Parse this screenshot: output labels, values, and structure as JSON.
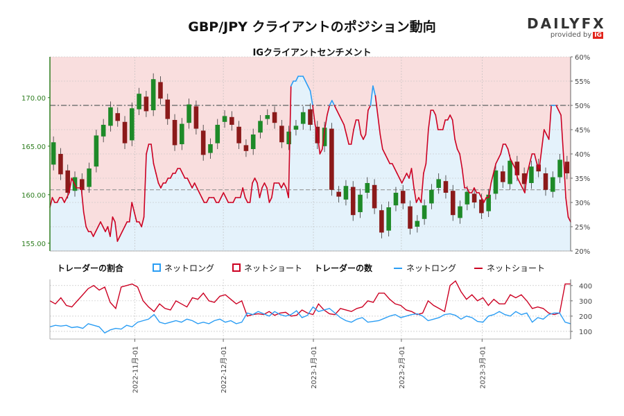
{
  "header": {
    "title": "GBP/JPY クライアントのポジション動向",
    "subtitle": "IGクライアントセンチメント",
    "brand": "DAILYFX",
    "brand_sub": "provided by",
    "brand_ig": "IG"
  },
  "legend": {
    "ratio_title": "トレーダーの割合",
    "long_label": "ネットロング",
    "short_label": "ネットショート",
    "count_title": "トレーダーの数",
    "count_long_label": "ネットロング",
    "count_short_label": "ネットショート"
  },
  "colors": {
    "long": "#2a9df4",
    "short": "#cc0022",
    "candle_up": "#1e8a28",
    "candle_down": "#8b1a1a",
    "short_fill": "#f9dede",
    "long_fill": "#e4f2fb",
    "left_axis": "#2d7d1f"
  },
  "chart_data": [
    {
      "type": "line",
      "title": "IGクライアントセンチメント",
      "y_left_ticks": [
        "155.00",
        "160.00",
        "165.00",
        "170.00"
      ],
      "y_left_range": [
        154.2,
        174.2
      ],
      "y_right_ticks": [
        "20%",
        "25%",
        "30%",
        "35%",
        "40%",
        "45%",
        "50%",
        "55%",
        "60%"
      ],
      "y_right_range": [
        20,
        60
      ],
      "reference_lines": {
        "long_pct": 50,
        "price": 160.5
      },
      "x_ticks": [
        "2022-11月-01",
        "2022-12月-01",
        "2023-1月-01",
        "2023-2月-01",
        "2023-3月-01"
      ],
      "series": [
        {
          "name": "ネットショート",
          "values": [
            29,
            31,
            30,
            30,
            31,
            31,
            30,
            31,
            32,
            35,
            34,
            33,
            33,
            33,
            28,
            25,
            24,
            24,
            23,
            24,
            25,
            26,
            25,
            24,
            25,
            23,
            27,
            26,
            22,
            23,
            24,
            25,
            26,
            26,
            30,
            28,
            26,
            26,
            25,
            27,
            40,
            42,
            42,
            38,
            36,
            34,
            33,
            34,
            34,
            35,
            35,
            36,
            36,
            37,
            37,
            36,
            35,
            35,
            34,
            33,
            34,
            33,
            32,
            31,
            30,
            30,
            31,
            31,
            31,
            30,
            30,
            31,
            32,
            31,
            30,
            30,
            30,
            31,
            31,
            31,
            33,
            31,
            30,
            30,
            34,
            35,
            34,
            31,
            33,
            34,
            33,
            30,
            31,
            34,
            34,
            34,
            33,
            34,
            33,
            31,
            54,
            55,
            55,
            56,
            56,
            56,
            55,
            54,
            53,
            50,
            46,
            44,
            40,
            41,
            45,
            48,
            50,
            51,
            50,
            49,
            48,
            47,
            46,
            44,
            42,
            42,
            45,
            47,
            47,
            44,
            43,
            44,
            49,
            50,
            54,
            52,
            48,
            44,
            41,
            40,
            39,
            38,
            38,
            37,
            36,
            35,
            34,
            35,
            36,
            35,
            37,
            33,
            30,
            31,
            30,
            36,
            38,
            45,
            49,
            49,
            48,
            45,
            45,
            45,
            47,
            47,
            48,
            47,
            43,
            41,
            40,
            37,
            33,
            33,
            32,
            32,
            33,
            32,
            32,
            31,
            30,
            31,
            31,
            34,
            36,
            38,
            39,
            40,
            42,
            42,
            41,
            39,
            38,
            37,
            35,
            34,
            33,
            32,
            36,
            38,
            40,
            40,
            38,
            37,
            41,
            45,
            44,
            43,
            50,
            50,
            50,
            49,
            48,
            40,
            31,
            27,
            26
          ],
          "long_values": [
            71,
            69,
            70,
            70,
            69,
            69,
            70,
            69,
            68,
            65,
            66,
            67,
            67,
            67,
            72,
            75,
            76,
            76,
            77,
            76,
            75,
            74,
            75,
            76,
            75,
            77,
            73,
            74,
            78,
            77,
            76,
            75,
            74,
            74,
            70,
            72,
            74,
            74,
            75,
            73,
            60,
            58,
            58,
            62,
            64,
            66,
            67,
            66,
            66,
            65,
            65,
            64,
            64,
            63,
            63,
            64,
            65,
            65,
            66,
            67,
            66,
            67,
            68,
            69,
            70,
            70,
            69,
            69,
            69,
            70,
            70,
            69,
            68,
            69,
            70,
            70,
            70,
            69,
            69,
            69,
            67,
            69,
            70,
            70,
            66,
            65,
            66,
            69,
            67,
            66,
            67,
            70,
            69,
            66,
            66,
            66,
            67,
            66,
            67,
            69,
            46,
            45,
            45,
            44,
            44,
            44,
            45,
            46,
            47,
            50,
            54,
            56,
            60,
            59,
            55,
            52,
            50,
            49,
            50,
            51,
            52,
            53,
            54,
            56,
            58,
            58,
            55,
            53,
            53,
            56,
            57,
            56,
            51,
            50,
            46,
            48,
            52,
            56,
            59,
            60,
            61,
            62,
            62,
            63,
            64,
            65,
            66,
            65,
            64,
            65,
            63,
            67,
            70,
            69,
            70,
            64,
            62,
            55,
            51,
            51,
            52,
            55,
            55,
            55,
            53,
            53,
            52,
            53,
            57,
            59,
            60,
            63,
            67,
            67,
            68,
            68,
            67,
            68,
            68,
            69,
            70,
            69,
            69,
            66,
            64,
            62,
            61,
            60,
            58,
            58,
            59,
            61,
            62,
            63,
            65,
            66,
            67,
            68,
            64,
            62,
            60,
            60,
            62,
            63,
            59,
            55,
            56,
            57,
            50,
            50,
            50,
            51,
            52,
            60,
            69,
            73,
            74
          ]
        }
      ],
      "candles": [
        [
          163.1,
          165.4
        ],
        [
          164.2,
          162.1
        ],
        [
          162.5,
          160.2
        ],
        [
          160.4,
          161.8
        ],
        [
          161.6,
          160.5
        ],
        [
          160.8,
          162.7
        ],
        [
          162.9,
          166.1
        ],
        [
          166.0,
          167.2
        ],
        [
          167.1,
          169.0
        ],
        [
          168.4,
          167.6
        ],
        [
          167.5,
          165.3
        ],
        [
          165.6,
          168.9
        ],
        [
          168.8,
          170.4
        ],
        [
          170.1,
          168.6
        ],
        [
          168.7,
          171.9
        ],
        [
          171.6,
          169.9
        ],
        [
          169.8,
          167.8
        ],
        [
          167.7,
          165.1
        ],
        [
          165.2,
          167.3
        ],
        [
          167.4,
          169.3
        ],
        [
          169.1,
          166.8
        ],
        [
          166.6,
          164.1
        ],
        [
          164.3,
          165.2
        ],
        [
          165.3,
          167.2
        ],
        [
          167.5,
          168.1
        ],
        [
          168.0,
          167.2
        ],
        [
          167.0,
          165.3
        ],
        [
          165.1,
          164.5
        ],
        [
          164.7,
          166.2
        ],
        [
          166.4,
          167.6
        ],
        [
          167.8,
          168.2
        ],
        [
          168.5,
          167.4
        ],
        [
          167.1,
          165.4
        ],
        [
          165.2,
          166.5
        ],
        [
          166.7,
          167.1
        ],
        [
          167.3,
          168.5
        ],
        [
          168.8,
          167.2
        ],
        [
          167.0,
          165.3
        ],
        [
          165.0,
          166.9
        ],
        [
          166.8,
          160.5
        ],
        [
          160.3,
          159.8
        ],
        [
          159.5,
          160.9
        ],
        [
          160.8,
          157.9
        ],
        [
          158.2,
          160.0
        ],
        [
          160.2,
          161.2
        ],
        [
          161.0,
          158.6
        ],
        [
          158.4,
          156.1
        ],
        [
          156.3,
          158.7
        ],
        [
          158.9,
          160.2
        ],
        [
          160.4,
          159.1
        ],
        [
          158.8,
          156.5
        ],
        [
          156.7,
          157.3
        ],
        [
          157.5,
          158.9
        ],
        [
          159.1,
          160.5
        ],
        [
          160.7,
          161.6
        ],
        [
          161.4,
          160.2
        ],
        [
          160.4,
          157.9
        ],
        [
          157.6,
          158.8
        ],
        [
          159.0,
          160.3
        ],
        [
          160.1,
          159.2
        ],
        [
          159.5,
          158.1
        ],
        [
          158.3,
          160.0
        ],
        [
          160.1,
          162.5
        ],
        [
          162.4,
          161.3
        ],
        [
          161.1,
          163.5
        ],
        [
          163.4,
          162.0
        ],
        [
          162.2,
          161.1
        ],
        [
          161.2,
          162.9
        ],
        [
          163.1,
          162.4
        ],
        [
          162.2,
          160.5
        ],
        [
          160.3,
          161.8
        ],
        [
          161.8,
          163.6
        ],
        [
          163.4,
          162.2
        ]
      ]
    },
    {
      "type": "line",
      "title": "トレーダーの数",
      "y_ticks": [
        "100",
        "200",
        "300",
        "400"
      ],
      "y_range": [
        50,
        440
      ],
      "series": [
        {
          "name": "ネットショート",
          "values": [
            300,
            280,
            320,
            270,
            260,
            300,
            340,
            380,
            400,
            370,
            390,
            290,
            250,
            390,
            400,
            410,
            390,
            300,
            260,
            230,
            280,
            250,
            240,
            300,
            280,
            260,
            320,
            310,
            350,
            300,
            290,
            330,
            340,
            310,
            280,
            300,
            200,
            210,
            215,
            210,
            230,
            205,
            220,
            225,
            200,
            205,
            240,
            220,
            210,
            280,
            240,
            215,
            210,
            250,
            240,
            230,
            250,
            260,
            300,
            290,
            350,
            350,
            310,
            280,
            270,
            240,
            230,
            210,
            220,
            300,
            270,
            250,
            230,
            400,
            430,
            360,
            310,
            340,
            300,
            320,
            270,
            310,
            280,
            280,
            340,
            320,
            340,
            300,
            250,
            260,
            250,
            220,
            210,
            220,
            410,
            410
          ]
        },
        {
          "name": "ネットロング",
          "values": [
            130,
            140,
            135,
            140,
            125,
            130,
            120,
            150,
            140,
            130,
            90,
            110,
            120,
            115,
            140,
            130,
            160,
            170,
            180,
            210,
            160,
            150,
            160,
            170,
            160,
            180,
            170,
            150,
            160,
            150,
            170,
            180,
            160,
            170,
            150,
            160,
            220,
            210,
            230,
            215,
            200,
            230,
            210,
            200,
            210,
            235,
            190,
            205,
            260,
            230,
            240,
            250,
            220,
            190,
            170,
            160,
            180,
            190,
            160,
            165,
            170,
            185,
            200,
            210,
            190,
            200,
            210,
            215,
            200,
            170,
            180,
            190,
            210,
            215,
            205,
            180,
            200,
            190,
            165,
            160,
            200,
            210,
            230,
            210,
            200,
            230,
            210,
            220,
            160,
            190,
            180,
            210,
            220,
            220,
            160,
            150
          ]
        }
      ]
    }
  ]
}
